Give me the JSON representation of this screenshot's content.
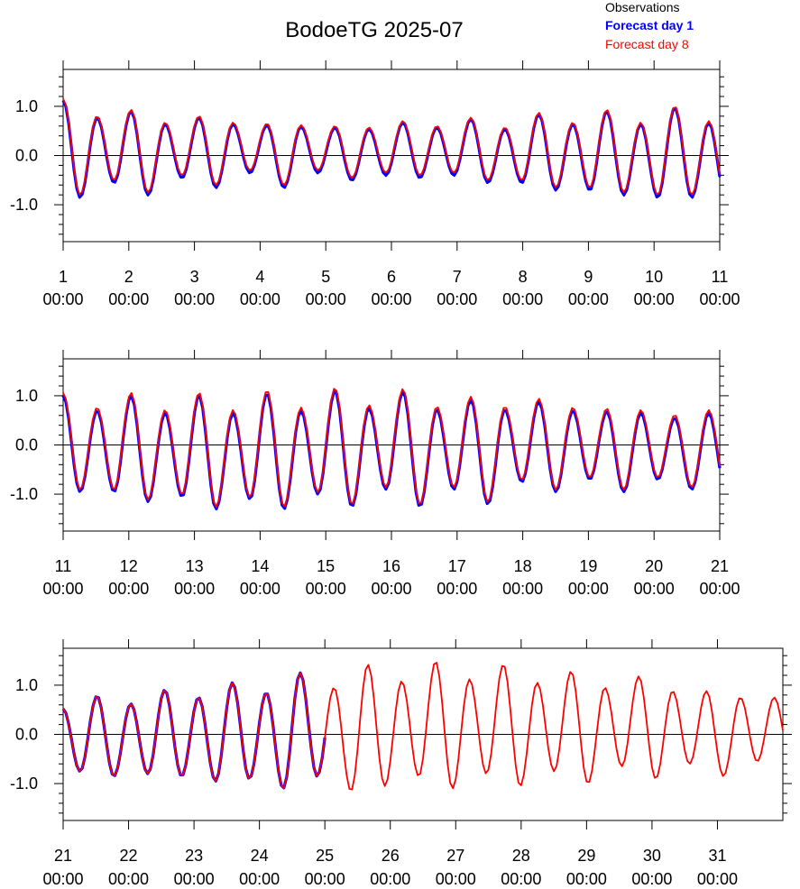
{
  "chart_data": {
    "type": "line",
    "title": "BodoeTG 2025-07",
    "legend": {
      "placement": "top-right",
      "entries": [
        {
          "label": "Observations",
          "color": "#000000",
          "bold": false
        },
        {
          "label": "Forecast day 1",
          "color": "#0000ff",
          "bold": true
        },
        {
          "label": "Forecast day 8",
          "color": "#ff0000",
          "bold": false
        }
      ]
    },
    "ylim": [
      -1.75,
      1.75
    ],
    "ytick_labels": [
      "1.0",
      "0.0",
      "-1.0"
    ],
    "ytick_values": [
      1.0,
      0.0,
      -1.0
    ],
    "grid": false,
    "panels": [
      {
        "xlim": [
          1,
          11
        ],
        "day_ticks": [
          "1",
          "2",
          "3",
          "4",
          "5",
          "6",
          "7",
          "8",
          "9",
          "10",
          "11"
        ],
        "time_label": "00:00",
        "highs": [
          1.1,
          0.75,
          0.88,
          0.62,
          0.75,
          0.62,
          0.6,
          0.57,
          0.55,
          0.52,
          0.65,
          0.55,
          0.72,
          0.52,
          0.82,
          0.62,
          0.88,
          0.62,
          0.95,
          0.65,
          1.0
        ],
        "lows": [
          -0.85,
          -0.55,
          -0.8,
          -0.45,
          -0.65,
          -0.35,
          -0.65,
          -0.35,
          -0.5,
          -0.4,
          -0.45,
          -0.4,
          -0.55,
          -0.55,
          -0.7,
          -0.7,
          -0.8,
          -0.85,
          -0.85
        ],
        "series": [
          {
            "name": "Observations",
            "color": "#000000",
            "start": 1.0,
            "end": 11.0,
            "highs_offset": 0.0,
            "lows_offset": -0.02
          },
          {
            "name": "Forecast day 1",
            "color": "#0000ff",
            "start": 1.0,
            "end": 11.0,
            "highs_offset": 0.02,
            "lows_offset": 0.0
          },
          {
            "name": "Forecast day 8",
            "color": "#ff0000",
            "start": 1.0,
            "end": 11.0,
            "highs_offset": 0.05,
            "lows_offset": 0.05
          }
        ]
      },
      {
        "xlim": [
          11,
          21
        ],
        "day_ticks": [
          "11",
          "12",
          "13",
          "14",
          "15",
          "16",
          "17",
          "18",
          "19",
          "20",
          "21"
        ],
        "time_label": "00:00",
        "highs": [
          1.0,
          0.7,
          1.0,
          0.65,
          1.0,
          0.65,
          1.05,
          0.7,
          1.1,
          0.75,
          1.08,
          0.72,
          0.92,
          0.72,
          0.88,
          0.7,
          0.68,
          0.65,
          0.55,
          0.65
        ],
        "lows": [
          -0.95,
          -0.95,
          -1.15,
          -1.05,
          -1.3,
          -1.1,
          -1.3,
          -1.0,
          -1.25,
          -0.9,
          -1.25,
          -0.9,
          -1.2,
          -0.75,
          -0.95,
          -0.7,
          -0.95,
          -0.7,
          -0.9
        ],
        "series": [
          {
            "name": "Observations",
            "color": "#000000",
            "start": 11.0,
            "end": 21.0,
            "highs_offset": 0.0,
            "lows_offset": 0.0
          },
          {
            "name": "Forecast day 1",
            "color": "#0000ff",
            "start": 11.0,
            "end": 21.0,
            "highs_offset": 0.0,
            "lows_offset": 0.0
          },
          {
            "name": "Forecast day 8",
            "color": "#ff0000",
            "start": 11.0,
            "end": 21.0,
            "highs_offset": 0.06,
            "lows_offset": 0.04
          }
        ]
      },
      {
        "xlim": [
          21,
          32
        ],
        "day_ticks": [
          "21",
          "22",
          "23",
          "24",
          "25",
          "26",
          "27",
          "28",
          "29",
          "30",
          "31"
        ],
        "time_label": "00:00",
        "highs": [
          0.52,
          0.78,
          0.62,
          0.9,
          0.75,
          1.05,
          0.85,
          1.25,
          0.95,
          1.42,
          1.08,
          1.48,
          1.12,
          1.42,
          1.05,
          1.28,
          0.95,
          1.18,
          0.88,
          0.88,
          0.75
        ],
        "lows": [
          -0.75,
          -0.85,
          -0.8,
          -0.85,
          -0.95,
          -0.9,
          -1.1,
          -0.85,
          -1.15,
          -1.05,
          -0.85,
          -1.1,
          -0.8,
          -1.05,
          -0.75,
          -1.0,
          -0.65,
          -0.9,
          -0.6,
          -0.85,
          -0.55
        ],
        "series": [
          {
            "name": "Observations",
            "color": "#000000",
            "start": 21.0,
            "end": 25.0,
            "highs_offset": 0.0,
            "lows_offset": 0.0
          },
          {
            "name": "Forecast day 1",
            "color": "#0000ff",
            "start": 21.0,
            "end": 25.0,
            "highs_offset": 0.0,
            "lows_offset": 0.0
          },
          {
            "name": "Forecast day 8",
            "color": "#ff0000",
            "start": 21.0,
            "end": 32.0,
            "highs_offset": 0.0,
            "lows_offset": 0.0
          }
        ]
      }
    ]
  }
}
